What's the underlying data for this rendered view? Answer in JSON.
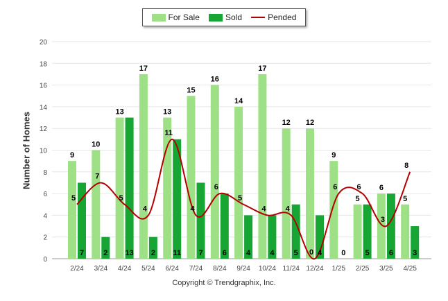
{
  "chart_data": {
    "type": "bar",
    "categories": [
      "2/24",
      "3/24",
      "4/24",
      "5/24",
      "6/24",
      "7/24",
      "8/24",
      "9/24",
      "10/24",
      "11/24",
      "12/24",
      "1/25",
      "2/25",
      "3/25",
      "4/25"
    ],
    "series": [
      {
        "name": "For Sale",
        "type": "bar",
        "color": "#9ee085",
        "values": [
          9,
          10,
          13,
          17,
          13,
          15,
          16,
          14,
          17,
          12,
          12,
          9,
          5,
          6,
          5
        ]
      },
      {
        "name": "Sold",
        "type": "bar",
        "color": "#17a633",
        "values": [
          7,
          2,
          13,
          2,
          11,
          7,
          6,
          4,
          4,
          5,
          4,
          0,
          5,
          6,
          3
        ]
      },
      {
        "name": "Pended",
        "type": "line",
        "color": "#b40000",
        "values": [
          5,
          7,
          5,
          4,
          11,
          4,
          6,
          5,
          4,
          4,
          0,
          6,
          6,
          3,
          8
        ]
      }
    ],
    "ylabel": "Number of Homes",
    "ylim": [
      0,
      20
    ],
    "yticks": [
      0,
      2,
      4,
      6,
      8,
      10,
      12,
      14,
      16,
      18,
      20
    ],
    "grid": true,
    "legend_position": "top-center"
  },
  "legend": {
    "for_sale": "For Sale",
    "sold": "Sold",
    "pended": "Pended"
  },
  "copyright": "Copyright © Trendgraphix, Inc."
}
